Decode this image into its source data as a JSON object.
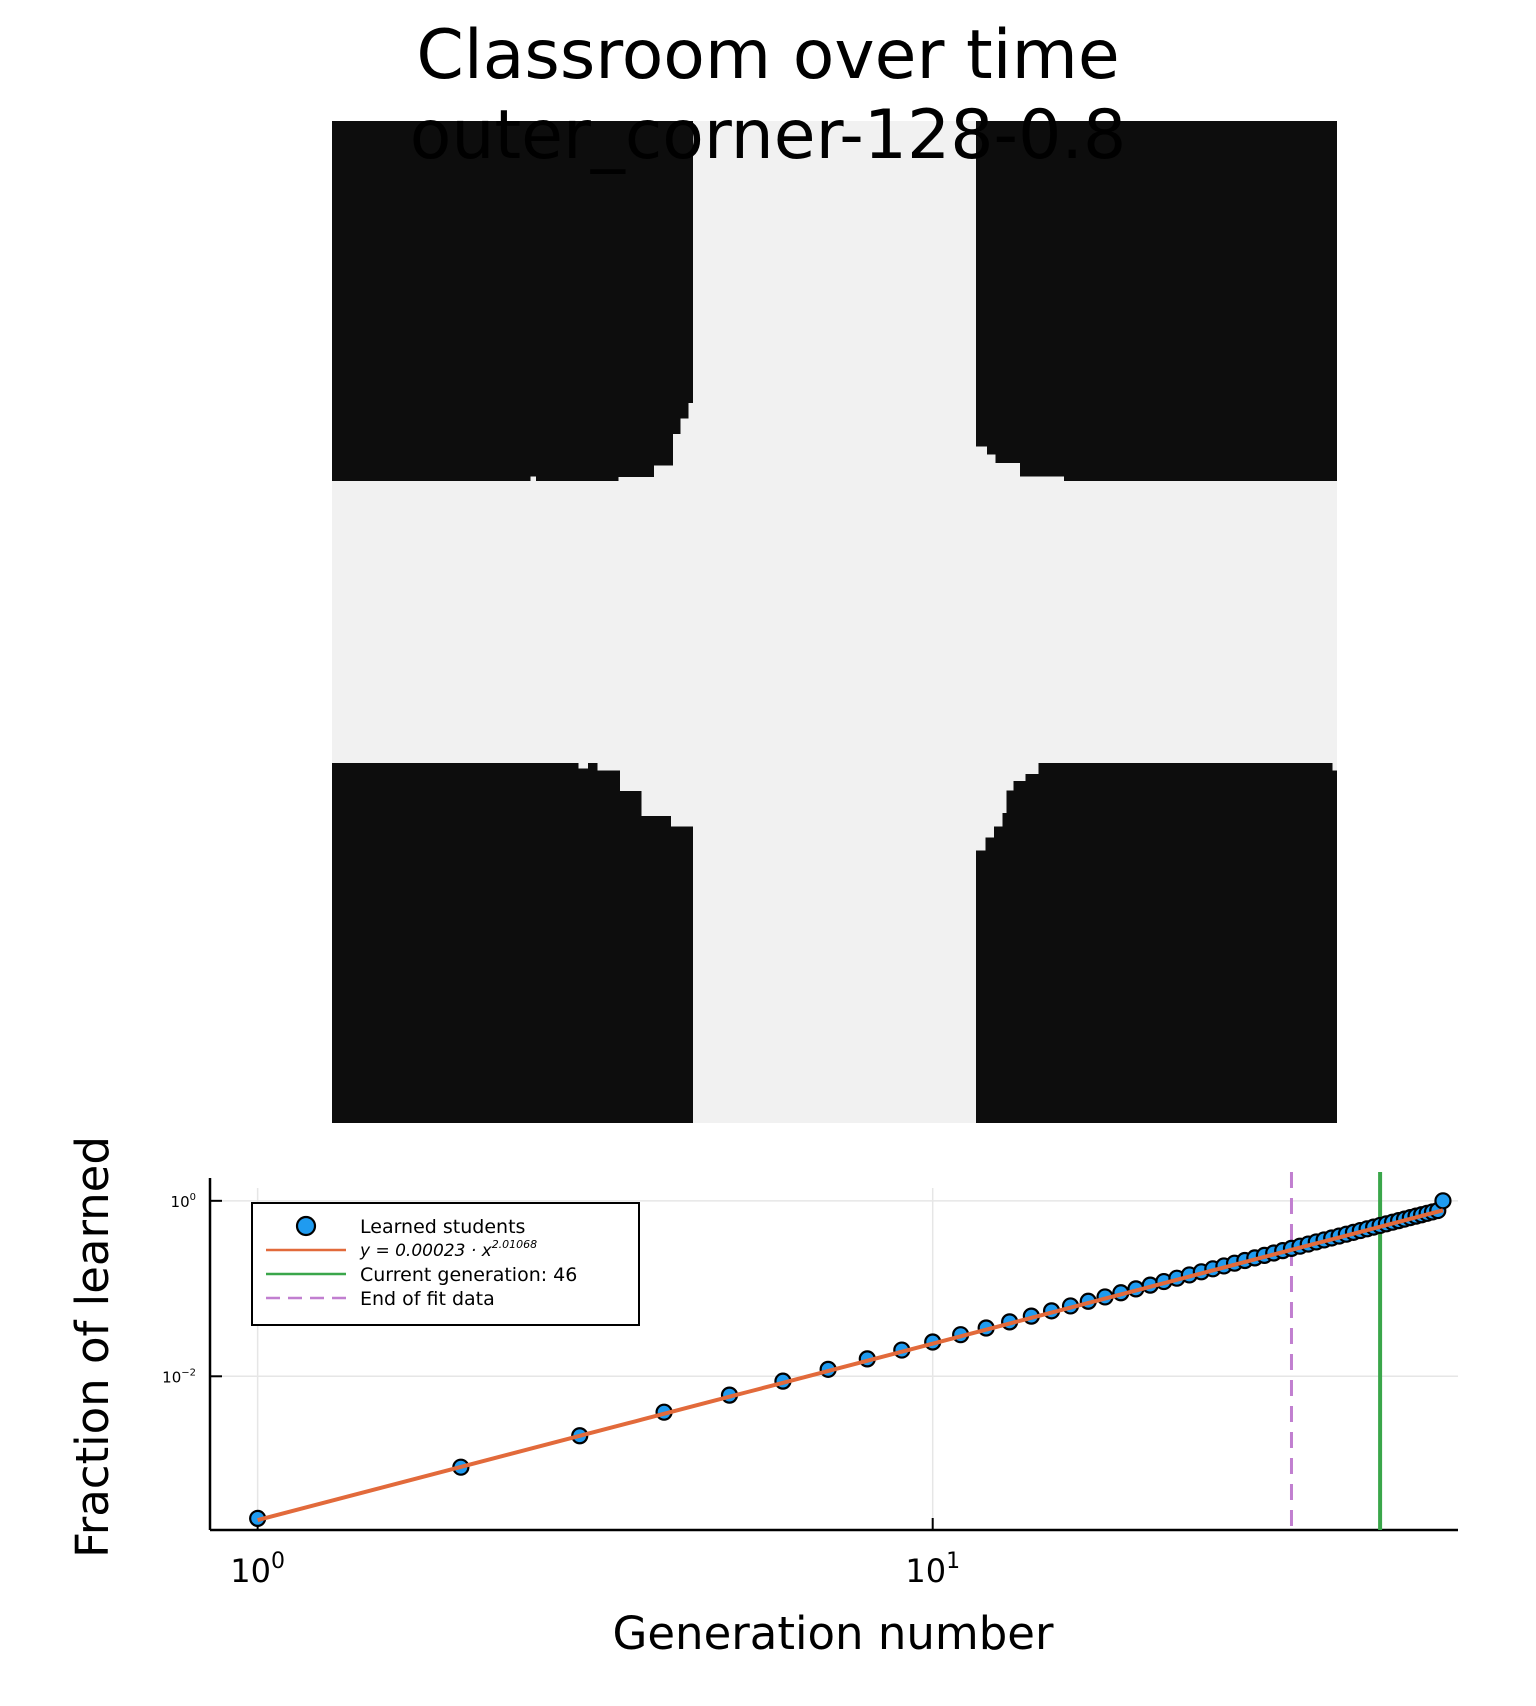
{
  "title": {
    "line1": "Classroom over time",
    "line2": "outer_corner-128-0.8"
  },
  "colors": {
    "learned": "#0d0d0d",
    "not_learned": "#f1f1f1",
    "points": "#1f9bf0",
    "fit": "#e26a3b",
    "current_generation": "#3aa64a",
    "end_of_fit": "#c17fd0"
  },
  "chart_data": [
    {
      "type": "heatmap",
      "description_grid": "classroom grid, dark = learned, light = not learned",
      "grid_size": [
        128,
        128
      ],
      "title": "Classroom over time outer_corner-128-0.8"
    },
    {
      "type": "scatter",
      "xlabel": "Generation number",
      "ylabel": "Fraction of learned",
      "xscale": "log",
      "yscale": "log",
      "xlim": [
        0.85,
        60
      ],
      "ylim": [
        0.000177,
        1.4
      ],
      "x_ticks": [
        1,
        10
      ],
      "x_tick_labels": [
        {
          "base": "10",
          "exp": "0"
        },
        {
          "base": "10",
          "exp": "1"
        }
      ],
      "y_ticks": [
        0.01,
        1
      ],
      "y_tick_labels": [
        {
          "base": "10",
          "exp": "−2"
        },
        {
          "base": "10",
          "exp": "0"
        }
      ],
      "grid": true,
      "legend_position": "top-left",
      "series": [
        {
          "name": "Learned students",
          "kind": "points",
          "x": [
            1,
            2,
            3,
            4,
            5,
            6,
            7,
            8,
            9,
            10,
            11,
            12,
            13,
            14,
            15,
            16,
            17,
            18,
            19,
            20,
            21,
            22,
            23,
            24,
            25,
            26,
            27,
            28,
            29,
            30,
            31,
            32,
            33,
            34,
            35,
            36,
            37,
            38,
            39,
            40,
            41,
            42,
            43,
            44,
            45,
            46,
            47,
            48,
            49,
            50,
            51,
            52,
            53,
            54,
            55,
            56,
            57
          ],
          "y": [
            0.00024,
            0.00092,
            0.0021,
            0.0039,
            0.0061,
            0.0088,
            0.012,
            0.0158,
            0.0199,
            0.0246,
            0.0298,
            0.0355,
            0.0417,
            0.0485,
            0.0557,
            0.0634,
            0.0716,
            0.0803,
            0.0895,
            0.0992,
            0.1094,
            0.1201,
            0.1313,
            0.143,
            0.1552,
            0.1679,
            0.1811,
            0.1947,
            0.2089,
            0.2235,
            0.2387,
            0.2543,
            0.2704,
            0.287,
            0.3041,
            0.3216,
            0.3397,
            0.3582,
            0.3772,
            0.3967,
            0.4168,
            0.4372,
            0.4582,
            0.4797,
            0.5017,
            0.5241,
            0.5471,
            0.5705,
            0.5944,
            0.619,
            0.644,
            0.669,
            0.694,
            0.72,
            0.747,
            0.774,
            1.0
          ]
        },
        {
          "name": "y = 0.00023 · x^2.01068",
          "name_parts": {
            "prefix": "y = 0.00023 · x",
            "exp": "2.01068"
          },
          "kind": "fit",
          "a": 0.00023,
          "b": 2.01068,
          "x_range": [
            1,
            57
          ]
        },
        {
          "name": "Current generation: 46",
          "kind": "vline",
          "x": 46
        },
        {
          "name": "End of fit data",
          "kind": "vline-dashed",
          "x": 34
        }
      ]
    }
  ]
}
